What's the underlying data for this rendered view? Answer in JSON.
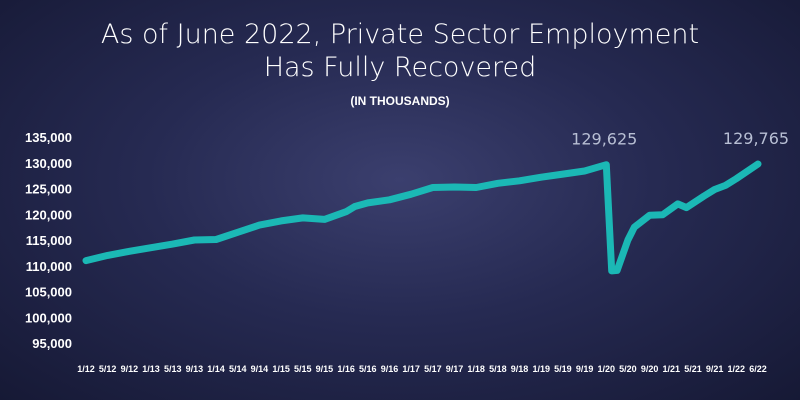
{
  "chart_data": {
    "type": "line",
    "title_line1": "As of June 2022, Private Sector Employment",
    "title_line2": "Has Fully Recovered",
    "subtitle": "(IN THOUSANDS)",
    "xlabel": "",
    "ylabel": "",
    "ylim": [
      95000,
      135000
    ],
    "yticks": [
      "95,000",
      "100,000",
      "105,000",
      "110,000",
      "115,000",
      "120,000",
      "125,000",
      "130,000",
      "135,000"
    ],
    "ytick_values": [
      95000,
      100000,
      105000,
      110000,
      115000,
      120000,
      125000,
      130000,
      135000
    ],
    "categories": [
      "1/12",
      "5/12",
      "9/12",
      "1/13",
      "5/13",
      "9/13",
      "1/14",
      "5/14",
      "9/14",
      "1/15",
      "5/15",
      "9/15",
      "1/16",
      "5/16",
      "9/16",
      "1/17",
      "5/17",
      "9/17",
      "1/18",
      "5/18",
      "9/18",
      "1/19",
      "5/19",
      "9/19",
      "1/20",
      "5/20",
      "9/20",
      "1/21",
      "5/21",
      "9/21",
      "1/22",
      "6/22"
    ],
    "series": [
      {
        "color": "#1bb8b5",
        "points": [
          [
            0,
            111000
          ],
          [
            1,
            112000
          ],
          [
            2,
            112800
          ],
          [
            3,
            113500
          ],
          [
            4,
            114200
          ],
          [
            5,
            115000
          ],
          [
            6,
            115100
          ],
          [
            7,
            116500
          ],
          [
            8,
            117900
          ],
          [
            9,
            118700
          ],
          [
            10,
            119300
          ],
          [
            11,
            119000
          ],
          [
            12,
            120500
          ],
          [
            12.4,
            121500
          ],
          [
            13,
            122200
          ],
          [
            14,
            122800
          ],
          [
            15,
            123900
          ],
          [
            16,
            125200
          ],
          [
            17,
            125300
          ],
          [
            18,
            125200
          ],
          [
            19,
            126000
          ],
          [
            20,
            126500
          ],
          [
            21,
            127200
          ],
          [
            22,
            127800
          ],
          [
            23,
            128400
          ],
          [
            24,
            129625
          ],
          [
            24.25,
            109000
          ],
          [
            24.5,
            109100
          ],
          [
            25,
            115000
          ],
          [
            25.3,
            117500
          ],
          [
            26,
            119800
          ],
          [
            26.6,
            119900
          ],
          [
            27.3,
            122000
          ],
          [
            27.7,
            121300
          ],
          [
            28.5,
            123500
          ],
          [
            29,
            124800
          ],
          [
            29.5,
            125600
          ],
          [
            30,
            126900
          ],
          [
            31,
            129765
          ]
        ]
      }
    ],
    "annotations": [
      {
        "text": "129,625",
        "x": 24,
        "y": 129625
      },
      {
        "text": "129,765",
        "x": 31,
        "y": 129765
      }
    ],
    "grid": false,
    "legend": "none"
  }
}
